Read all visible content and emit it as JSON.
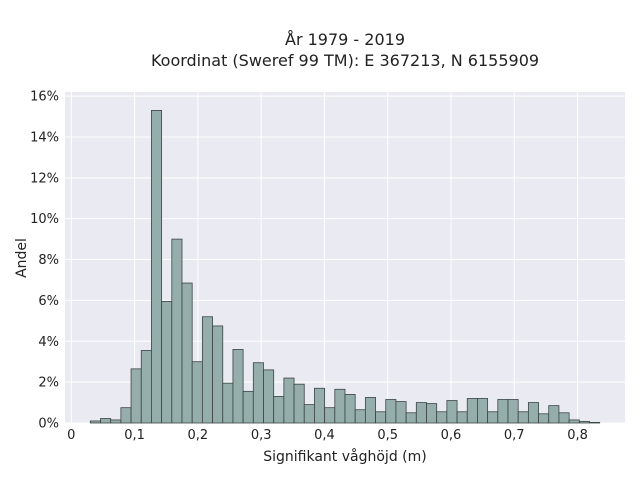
{
  "chart_data": {
    "type": "bar",
    "title_line1": "År 1979 - 2019",
    "title_line2": "Koordinat (Sweref 99 TM): E 367213, N 6155909",
    "xlabel": "Signifikant våghöjd (m)",
    "ylabel": "Andel",
    "xlim": [
      -0.01,
      0.875
    ],
    "ylim": [
      0,
      16.2
    ],
    "grid": true,
    "x_ticks": [
      {
        "value": 0.0,
        "label": "0"
      },
      {
        "value": 0.1,
        "label": "0,1"
      },
      {
        "value": 0.2,
        "label": "0,2"
      },
      {
        "value": 0.3,
        "label": "0,3"
      },
      {
        "value": 0.4,
        "label": "0,4"
      },
      {
        "value": 0.5,
        "label": "0,5"
      },
      {
        "value": 0.6,
        "label": "0,6"
      },
      {
        "value": 0.7,
        "label": "0,7"
      },
      {
        "value": 0.8,
        "label": "0,8"
      }
    ],
    "y_ticks": [
      {
        "value": 0,
        "label": "0%"
      },
      {
        "value": 2,
        "label": "2%"
      },
      {
        "value": 4,
        "label": "4%"
      },
      {
        "value": 6,
        "label": "6%"
      },
      {
        "value": 8,
        "label": "8%"
      },
      {
        "value": 10,
        "label": "10%"
      },
      {
        "value": 12,
        "label": "12%"
      },
      {
        "value": 14,
        "label": "14%"
      },
      {
        "value": 16,
        "label": "16%"
      }
    ],
    "bin_start": 0.03,
    "bin_width": 0.0161,
    "values": [
      0.1,
      0.22,
      0.15,
      0.75,
      2.65,
      3.55,
      15.3,
      5.95,
      9.0,
      6.85,
      3.0,
      5.2,
      4.75,
      1.95,
      3.6,
      1.55,
      2.95,
      2.6,
      1.3,
      2.2,
      1.9,
      0.9,
      1.7,
      0.75,
      1.65,
      1.4,
      0.65,
      1.25,
      0.55,
      1.15,
      1.05,
      0.5,
      1.0,
      0.95,
      0.55,
      1.1,
      0.55,
      1.2,
      1.2,
      0.55,
      1.15,
      1.15,
      0.55,
      1.0,
      0.45,
      0.85,
      0.5,
      0.15,
      0.08,
      0.03
    ],
    "colors": {
      "bar_fill": "#95aeac",
      "bar_edge": "#3a4545",
      "plot_bg": "#eaeaf2",
      "grid": "#ffffff"
    }
  }
}
